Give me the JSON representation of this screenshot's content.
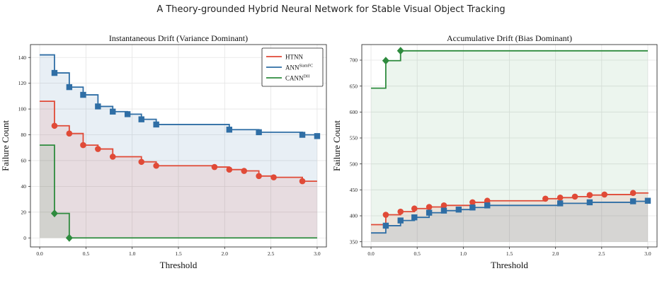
{
  "figure": {
    "title": "A Theory-grounded Hybrid Neural Network for Stable Visual Object Tracking"
  },
  "colors": {
    "htnn": "#e04a37",
    "ann": "#2f6ea5",
    "cann": "#2e8b3e"
  },
  "chart_data": [
    {
      "type": "line",
      "title": "Instantaneous Drift (Variance Dominant)",
      "xlabel": "Threshold",
      "ylabel": "Failure Count",
      "xlim": [
        -0.1,
        3.1
      ],
      "ylim": [
        -7,
        150
      ],
      "xticks": [
        0.0,
        0.5,
        1.0,
        1.5,
        2.0,
        2.5,
        3.0
      ],
      "xtick_labels": [
        "0.0",
        "0.5",
        "1.0",
        "1.5",
        "2.0",
        "2.5",
        "3.0"
      ],
      "yticks": [
        0,
        20,
        40,
        60,
        80,
        100,
        120,
        140
      ],
      "ytick_labels": [
        "0",
        "20",
        "40",
        "60",
        "80",
        "100",
        "120",
        "140"
      ],
      "grid": true,
      "legend": "top-right",
      "step_curves": true,
      "filled": true,
      "series": [
        {
          "name": "HTNN",
          "color": "#e04a37",
          "marker": "circle",
          "x": [
            0.0,
            0.16,
            0.32,
            0.47,
            0.63,
            0.79,
            1.1,
            1.26,
            1.89,
            2.05,
            2.21,
            2.37,
            2.53,
            2.84,
            3.0
          ],
          "y": [
            106,
            87,
            81,
            72,
            69,
            63,
            59,
            56,
            55,
            53,
            52,
            48,
            47,
            44,
            44
          ],
          "markers_x": [
            0.16,
            0.32,
            0.47,
            0.63,
            0.79,
            1.1,
            1.26,
            1.89,
            2.05,
            2.21,
            2.37,
            2.53,
            2.84
          ],
          "markers_y": [
            87,
            81,
            72,
            69,
            63,
            59,
            56,
            55,
            53,
            52,
            48,
            47,
            44
          ]
        },
        {
          "name": "ANN",
          "superscript": "SiamFC",
          "color": "#2f6ea5",
          "marker": "square",
          "x": [
            0.0,
            0.16,
            0.32,
            0.47,
            0.63,
            0.79,
            0.95,
            1.1,
            1.26,
            2.05,
            2.37,
            2.84,
            3.0
          ],
          "y": [
            142,
            128,
            117,
            111,
            102,
            98,
            96,
            92,
            88,
            84,
            82,
            80,
            79
          ],
          "markers_x": [
            0.16,
            0.32,
            0.47,
            0.63,
            0.79,
            0.95,
            1.1,
            1.26,
            2.05,
            2.37,
            2.84,
            3.0
          ],
          "markers_y": [
            128,
            117,
            111,
            102,
            98,
            96,
            92,
            88,
            84,
            82,
            80,
            79
          ]
        },
        {
          "name": "CANN",
          "superscript": "DH",
          "color": "#2e8b3e",
          "marker": "diamond",
          "x": [
            0.0,
            0.16,
            0.32,
            3.0
          ],
          "y": [
            72,
            19,
            0,
            0
          ],
          "markers_x": [
            0.16,
            0.32
          ],
          "markers_y": [
            19,
            0
          ]
        }
      ]
    },
    {
      "type": "line",
      "title": "Accumulative Drift (Bias Dominant)",
      "xlabel": "Threshold",
      "ylabel": "Failure Count",
      "xlim": [
        -0.1,
        3.1
      ],
      "ylim": [
        340,
        730
      ],
      "xticks": [
        0.0,
        0.5,
        1.0,
        1.5,
        2.0,
        2.5,
        3.0
      ],
      "xtick_labels": [
        "0.0",
        "0.5",
        "1.0",
        "1.5",
        "2.0",
        "2.5",
        "3.0"
      ],
      "yticks": [
        350,
        400,
        450,
        500,
        550,
        600,
        650,
        700
      ],
      "ytick_labels": [
        "350",
        "400",
        "450",
        "500",
        "550",
        "600",
        "650",
        "700"
      ],
      "grid": true,
      "legend": "none",
      "step_curves": true,
      "filled": true,
      "series": [
        {
          "name": "HTNN",
          "color": "#e04a37",
          "marker": "circle",
          "x": [
            0.0,
            0.16,
            0.32,
            0.47,
            0.63,
            0.79,
            1.1,
            1.26,
            1.89,
            2.05,
            2.21,
            2.37,
            2.53,
            2.84,
            3.0
          ],
          "y": [
            383,
            402,
            408,
            414,
            417,
            420,
            426,
            429,
            433,
            435,
            437,
            440,
            441,
            444,
            445
          ],
          "markers_x": [
            0.16,
            0.32,
            0.47,
            0.63,
            0.79,
            1.1,
            1.26,
            1.89,
            2.05,
            2.21,
            2.37,
            2.53,
            2.84
          ],
          "markers_y": [
            402,
            408,
            414,
            417,
            420,
            426,
            429,
            433,
            435,
            437,
            440,
            441,
            444
          ]
        },
        {
          "name": "ANN",
          "superscript": "SiamFC",
          "color": "#2f6ea5",
          "marker": "square",
          "x": [
            0.0,
            0.16,
            0.32,
            0.47,
            0.63,
            0.79,
            0.95,
            1.1,
            1.26,
            2.05,
            2.37,
            2.84,
            3.0
          ],
          "y": [
            367,
            381,
            391,
            397,
            406,
            410,
            412,
            416,
            420,
            424,
            426,
            428,
            429
          ],
          "markers_x": [
            0.16,
            0.32,
            0.47,
            0.63,
            0.79,
            0.95,
            1.1,
            1.26,
            2.05,
            2.37,
            2.84,
            3.0
          ],
          "markers_y": [
            381,
            391,
            397,
            406,
            410,
            412,
            416,
            420,
            424,
            426,
            428,
            429
          ]
        },
        {
          "name": "CANN",
          "superscript": "DH",
          "color": "#2e8b3e",
          "marker": "diamond",
          "x": [
            0.0,
            0.16,
            0.32,
            3.0
          ],
          "y": [
            646,
            699,
            718,
            718
          ],
          "markers_x": [
            0.16,
            0.32
          ],
          "markers_y": [
            699,
            718
          ]
        }
      ]
    }
  ]
}
